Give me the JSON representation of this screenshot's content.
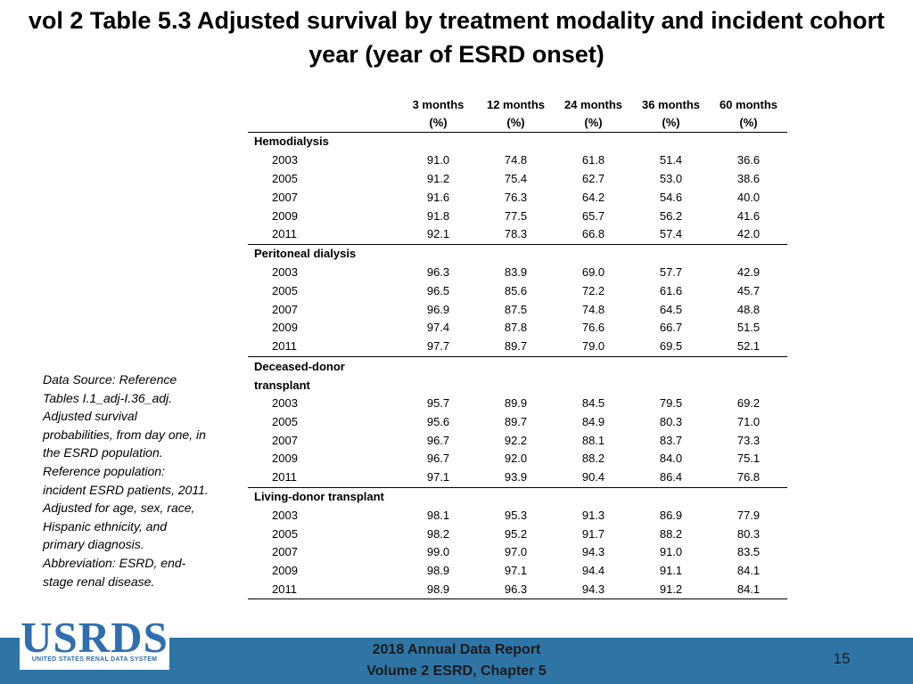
{
  "title": "vol 2 Table 5.3 Adjusted survival by treatment modality and incident cohort year (year of ESRD onset)",
  "table": {
    "columns": [
      {
        "label": "3 months",
        "unit": "(%)"
      },
      {
        "label": "12 months",
        "unit": "(%)"
      },
      {
        "label": "24 months",
        "unit": "(%)"
      },
      {
        "label": "36 months",
        "unit": "(%)"
      },
      {
        "label": "60 months",
        "unit": "(%)"
      }
    ],
    "groups": [
      {
        "name": "Hemodialysis",
        "rows": [
          {
            "year": "2003",
            "values": [
              "91.0",
              "74.8",
              "61.8",
              "51.4",
              "36.6"
            ]
          },
          {
            "year": "2005",
            "values": [
              "91.2",
              "75.4",
              "62.7",
              "53.0",
              "38.6"
            ]
          },
          {
            "year": "2007",
            "values": [
              "91.6",
              "76.3",
              "64.2",
              "54.6",
              "40.0"
            ]
          },
          {
            "year": "2009",
            "values": [
              "91.8",
              "77.5",
              "65.7",
              "56.2",
              "41.6"
            ]
          },
          {
            "year": "2011",
            "values": [
              "92.1",
              "78.3",
              "66.8",
              "57.4",
              "42.0"
            ]
          }
        ]
      },
      {
        "name": "Peritoneal dialysis",
        "rows": [
          {
            "year": "2003",
            "values": [
              "96.3",
              "83.9",
              "69.0",
              "57.7",
              "42.9"
            ]
          },
          {
            "year": "2005",
            "values": [
              "96.5",
              "85.6",
              "72.2",
              "61.6",
              "45.7"
            ]
          },
          {
            "year": "2007",
            "values": [
              "96.9",
              "87.5",
              "74.8",
              "64.5",
              "48.8"
            ]
          },
          {
            "year": "2009",
            "values": [
              "97.4",
              "87.8",
              "76.6",
              "66.7",
              "51.5"
            ]
          },
          {
            "year": "2011",
            "values": [
              "97.7",
              "89.7",
              "79.0",
              "69.5",
              "52.1"
            ]
          }
        ]
      },
      {
        "name": "Deceased-donor transplant",
        "rows": [
          {
            "year": "2003",
            "values": [
              "95.7",
              "89.9",
              "84.5",
              "79.5",
              "69.2"
            ]
          },
          {
            "year": "2005",
            "values": [
              "95.6",
              "89.7",
              "84.9",
              "80.3",
              "71.0"
            ]
          },
          {
            "year": "2007",
            "values": [
              "96.7",
              "92.2",
              "88.1",
              "83.7",
              "73.3"
            ]
          },
          {
            "year": "2009",
            "values": [
              "96.7",
              "92.0",
              "88.2",
              "84.0",
              "75.1"
            ]
          },
          {
            "year": "2011",
            "values": [
              "97.1",
              "93.9",
              "90.4",
              "86.4",
              "76.8"
            ]
          }
        ]
      },
      {
        "name": "Living-donor transplant",
        "rows": [
          {
            "year": "2003",
            "values": [
              "98.1",
              "95.3",
              "91.3",
              "86.9",
              "77.9"
            ]
          },
          {
            "year": "2005",
            "values": [
              "98.2",
              "95.2",
              "91.7",
              "88.2",
              "80.3"
            ]
          },
          {
            "year": "2007",
            "values": [
              "99.0",
              "97.0",
              "94.3",
              "91.0",
              "83.5"
            ]
          },
          {
            "year": "2009",
            "values": [
              "98.9",
              "97.1",
              "94.4",
              "91.1",
              "84.1"
            ]
          },
          {
            "year": "2011",
            "values": [
              "98.9",
              "96.3",
              "94.3",
              "91.2",
              "84.1"
            ]
          }
        ]
      }
    ]
  },
  "source_note": "Data Source: Reference Tables I.1_adj-I.36_adj. Adjusted survival probabilities, from day one, in the ESRD population. Reference population: incident ESRD patients, 2011. Adjusted for age, sex, race, Hispanic ethnicity, and primary diagnosis. Abbreviation: ESRD, end-stage renal disease.",
  "logo": {
    "text": "USRDS",
    "subtitle": "UNITED STATES RENAL DATA SYSTEM"
  },
  "footer": {
    "line1": "2018 Annual Data Report",
    "line2": "Volume 2 ESRD, Chapter 5"
  },
  "page_number": "15",
  "colors": {
    "footer_bar": "#2e75a6",
    "logo": "#2f6fb0"
  }
}
